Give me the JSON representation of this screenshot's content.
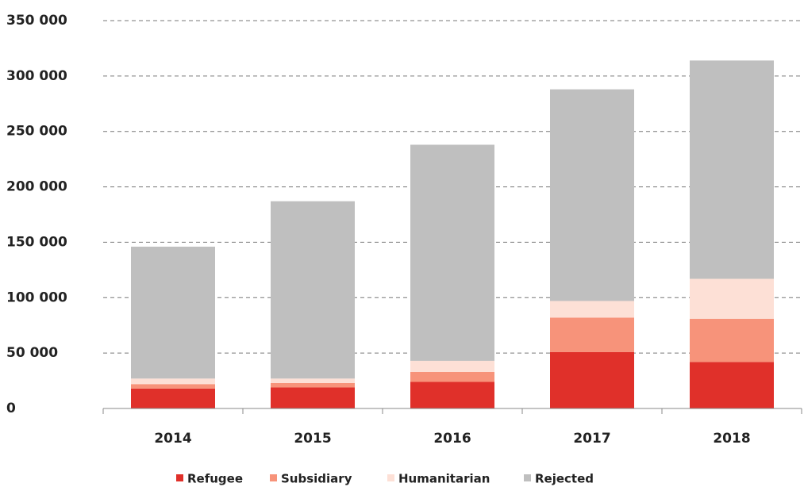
{
  "chart_data": {
    "type": "stacked-bar",
    "categories": [
      "2014",
      "2015",
      "2016",
      "2017",
      "2018"
    ],
    "series": [
      {
        "name": "Refugee",
        "color": "#e0302a",
        "values": [
          18000,
          19000,
          24000,
          51000,
          42000
        ]
      },
      {
        "name": "Subsidiary",
        "color": "#f7937a",
        "values": [
          4000,
          4000,
          9000,
          31000,
          39000
        ]
      },
      {
        "name": "Humanitarian",
        "color": "#fde0d6",
        "values": [
          5000,
          4000,
          10000,
          15000,
          36000
        ]
      },
      {
        "name": "Rejected",
        "color": "#bfbfbf",
        "values": [
          119000,
          160000,
          195000,
          191000,
          197000
        ]
      }
    ],
    "ylim": [
      0,
      350000
    ],
    "yticks": [
      0,
      {
        "value": 50000,
        "label": "50 000"
      },
      {
        "value": 100000,
        "label": "100 000"
      },
      {
        "value": 150000,
        "label": "150 000"
      },
      {
        "value": 200000,
        "label": "200 000"
      },
      {
        "value": 250000,
        "label": "250 000"
      },
      {
        "value": 300000,
        "label": "300 000"
      },
      {
        "value": 350000,
        "label": "350 000"
      }
    ],
    "grid": true,
    "legend": "bottom"
  }
}
